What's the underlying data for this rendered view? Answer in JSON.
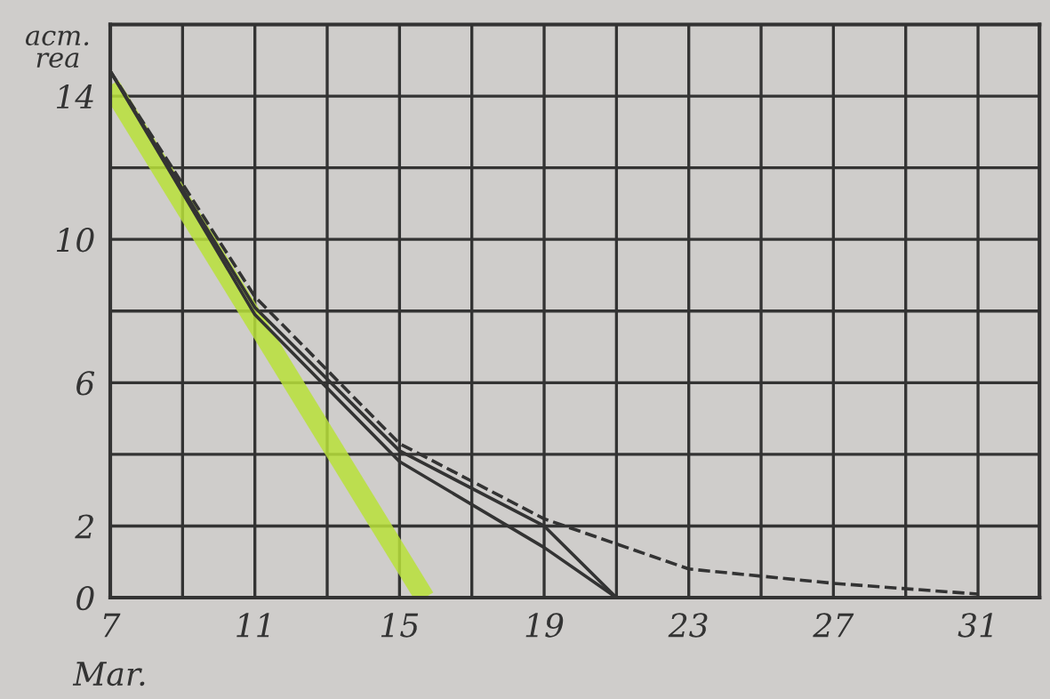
{
  "chart_data": {
    "type": "line",
    "ylabel": "acm.\nrea",
    "xlabel": "Mar.",
    "x": [
      7,
      11,
      15,
      19,
      21
    ],
    "series": [
      {
        "color": "#333333",
        "line_style": "solid",
        "values": [
          14.7,
          7.9,
          3.8,
          1.4,
          0
        ]
      },
      {
        "color": "#333333",
        "line_style": "solid",
        "values": [
          14.7,
          8.1,
          4.1,
          2.0,
          0
        ]
      },
      {
        "color": "#333333",
        "line_style": "dashed",
        "x": [
          7,
          11,
          15,
          19,
          23,
          27,
          31
        ],
        "values": [
          14.7,
          8.4,
          4.3,
          2.2,
          0.8,
          0.4,
          0.1
        ]
      },
      {
        "color": "#b8e03a",
        "line_style": "solid",
        "x": [
          7,
          15.7
        ],
        "values": [
          14.3,
          0
        ]
      }
    ],
    "xlim": [
      7,
      32.7
    ],
    "ylim": [
      0,
      16
    ],
    "xticks": [
      7,
      {
        "value": 9,
        "label": null
      },
      11,
      {
        "value": 13,
        "label": null
      },
      15,
      {
        "value": 17,
        "label": null
      },
      19,
      {
        "value": 21,
        "label": null
      },
      23,
      {
        "value": 25,
        "label": null
      },
      27,
      {
        "value": 29,
        "label": null
      },
      31
    ],
    "yticks": [
      0,
      2,
      {
        "value": 4,
        "label": null
      },
      6,
      {
        "value": 8,
        "label": null
      },
      10,
      {
        "value": 12,
        "label": null
      },
      14,
      {
        "value": 16,
        "label": null
      }
    ],
    "grid": true,
    "marker": "none"
  }
}
